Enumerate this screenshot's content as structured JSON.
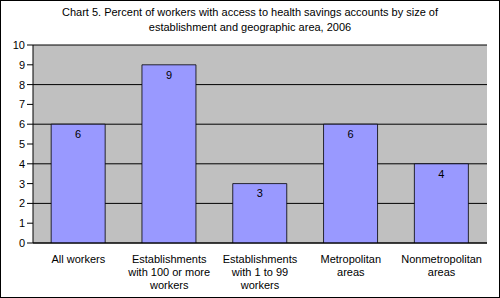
{
  "chart_data": {
    "type": "bar",
    "title": "Chart 5. Percent of workers with access to health savings accounts by size of establishment and geographic area, 2006",
    "categories": [
      "All workers",
      "Establishments with 100 or more workers",
      "Establishments with 1 to 99 workers",
      "Metropolitan areas",
      "Nonmetropolitan areas"
    ],
    "values": [
      6,
      9,
      3,
      6,
      4
    ],
    "color": "#9999FF",
    "ylim": [
      0,
      10
    ],
    "yticks": [
      0,
      1,
      2,
      3,
      4,
      5,
      6,
      7,
      8,
      9,
      10
    ],
    "grid": true,
    "data_labels": true
  }
}
